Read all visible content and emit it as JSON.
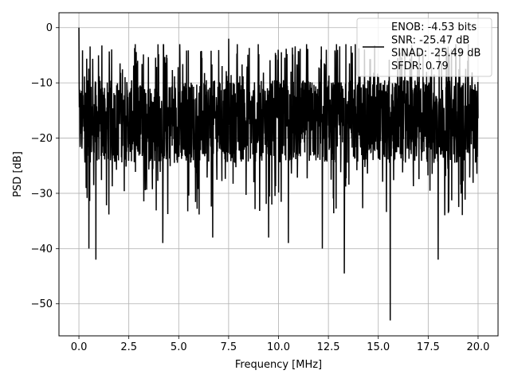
{
  "chart_data": {
    "type": "line",
    "title": "",
    "xlabel": "Frequency [MHz]",
    "ylabel": "PSD [dB]",
    "xlim": [
      -1.0,
      21.0
    ],
    "ylim": [
      -55.8,
      2.7
    ],
    "xticks": [
      0.0,
      2.5,
      5.0,
      7.5,
      10.0,
      12.5,
      15.0,
      17.5,
      20.0
    ],
    "xtick_labels": [
      "0.0",
      "2.5",
      "5.0",
      "7.5",
      "10.0",
      "12.5",
      "15.0",
      "17.5",
      "20.0"
    ],
    "yticks": [
      0,
      -10,
      -20,
      -30,
      -40,
      -50
    ],
    "ytick_labels": [
      "0",
      "−10",
      "−20",
      "−30",
      "−40",
      "−50"
    ],
    "grid": true,
    "legend_position": "top-right",
    "legend_entries": [
      "ENOB: -4.53 bits\nSNR: -25.47 dB\nSINAD: -25.49 dB\nSFDR: 0.79"
    ],
    "series": [
      {
        "color": "#000000",
        "x_start": 0.0,
        "x_end": 20.0,
        "points": 2000,
        "noise_floor_db": -17,
        "peak_db": 0.0,
        "notable_points": [
          {
            "x": 0.0,
            "y": 0.0
          },
          {
            "x": 0.5,
            "y": -40.0
          },
          {
            "x": 0.85,
            "y": -42.0
          },
          {
            "x": 4.2,
            "y": -39.0
          },
          {
            "x": 6.7,
            "y": -38.0
          },
          {
            "x": 7.5,
            "y": -2.0
          },
          {
            "x": 9.5,
            "y": -38.0
          },
          {
            "x": 10.5,
            "y": -39.0
          },
          {
            "x": 12.2,
            "y": -40.0
          },
          {
            "x": 12.4,
            "y": -4.0
          },
          {
            "x": 13.3,
            "y": -44.5
          },
          {
            "x": 15.6,
            "y": -53.0
          },
          {
            "x": 18.0,
            "y": -42.0
          }
        ]
      }
    ]
  }
}
